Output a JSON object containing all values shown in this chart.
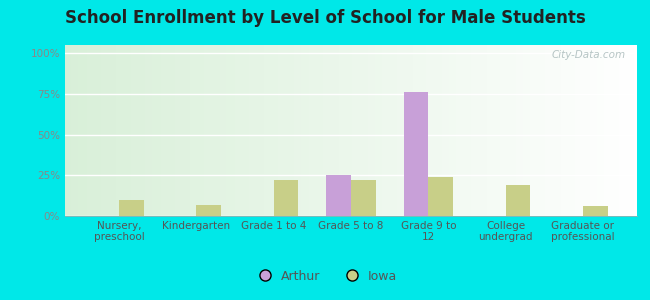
{
  "title": "School Enrollment by Level of School for Male Students",
  "categories": [
    "Nursery,\npreschool",
    "Kindergarten",
    "Grade 1 to 4",
    "Grade 5 to 8",
    "Grade 9 to\n12",
    "College\nundergrad",
    "Graduate or\nprofessional"
  ],
  "arthur_values": [
    0,
    0,
    0,
    25,
    76,
    0,
    0
  ],
  "iowa_values": [
    10,
    7,
    22,
    22,
    24,
    19,
    6
  ],
  "arthur_color": "#c8a0d8",
  "iowa_color": "#c8cf88",
  "background_outer": "#00e8e8",
  "background_inner": "#eef8ee",
  "yticks": [
    0,
    25,
    50,
    75,
    100
  ],
  "ytick_labels": [
    "0%",
    "25%",
    "50%",
    "75%",
    "100%"
  ],
  "ylim": [
    0,
    105
  ],
  "bar_width": 0.32,
  "legend_labels": [
    "Arthur",
    "Iowa"
  ],
  "watermark": "City-Data.com",
  "title_fontsize": 12,
  "axis_fontsize": 7.5,
  "tick_fontsize": 7.5,
  "tick_color": "#888888",
  "label_color": "#555555",
  "title_color": "#222222"
}
